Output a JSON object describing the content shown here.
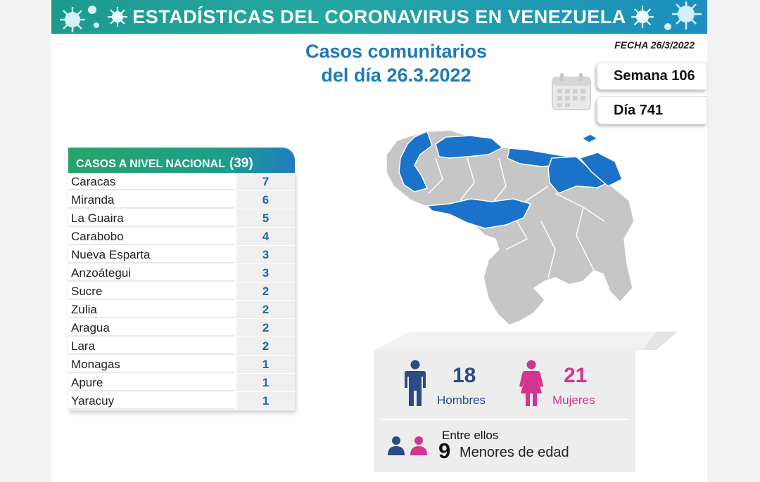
{
  "header": {
    "title": "ESTADÍSTICAS DEL CORONAVIRUS EN VENEZUELA"
  },
  "title": {
    "line1": "Casos comunitarios",
    "line2": "del día 26.3.2022"
  },
  "fecha": "FECHA 26/3/2022",
  "semana": "Semana 106",
  "dia": "Día 741",
  "table": {
    "heading": "CASOS A NIVEL NACIONAL",
    "total": "(39)",
    "rows": [
      {
        "state": "Caracas",
        "cases": "7"
      },
      {
        "state": "Miranda",
        "cases": "6"
      },
      {
        "state": "La Guaira",
        "cases": "5"
      },
      {
        "state": "Carabobo",
        "cases": "4"
      },
      {
        "state": "Nueva Esparta",
        "cases": "3"
      },
      {
        "state": "Anzoátegui",
        "cases": "3"
      },
      {
        "state": "Sucre",
        "cases": "2"
      },
      {
        "state": "Zulia",
        "cases": "2"
      },
      {
        "state": "Aragua",
        "cases": "2"
      },
      {
        "state": "Lara",
        "cases": "2"
      },
      {
        "state": "Monagas",
        "cases": "1"
      },
      {
        "state": "Apure",
        "cases": "1"
      },
      {
        "state": "Yaracuy",
        "cases": "1"
      }
    ]
  },
  "gender": {
    "men_count": "18",
    "men_label": "Hombres",
    "women_count": "21",
    "women_label": "Mujeres",
    "entre": "Entre ellos",
    "minors_count": "9",
    "minors_label": "Menores de edad"
  },
  "colors": {
    "banner": "#24a7a1",
    "title_blue": "#1e7ab8",
    "men": "#2a4a8a",
    "women": "#d2348f",
    "map_highlight": "#1a73c9",
    "map_base": "#c6c6c6"
  },
  "icons": {
    "calendar": "calendar-icon",
    "man": "man-icon",
    "woman": "woman-icon",
    "virus": "virus-icon"
  }
}
